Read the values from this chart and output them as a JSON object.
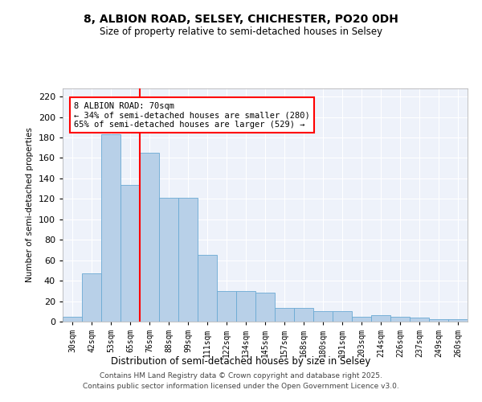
{
  "title1": "8, ALBION ROAD, SELSEY, CHICHESTER, PO20 0DH",
  "title2": "Size of property relative to semi-detached houses in Selsey",
  "xlabel": "Distribution of semi-detached houses by size in Selsey",
  "ylabel": "Number of semi-detached properties",
  "categories": [
    "30sqm",
    "42sqm",
    "53sqm",
    "65sqm",
    "76sqm",
    "88sqm",
    "99sqm",
    "111sqm",
    "122sqm",
    "134sqm",
    "145sqm",
    "157sqm",
    "168sqm",
    "180sqm",
    "191sqm",
    "203sqm",
    "214sqm",
    "226sqm",
    "237sqm",
    "249sqm",
    "260sqm"
  ],
  "values": [
    5,
    47,
    183,
    134,
    165,
    121,
    121,
    65,
    30,
    30,
    28,
    13,
    13,
    10,
    10,
    5,
    6,
    5,
    4,
    2,
    2
  ],
  "bar_color": "#b8d0e8",
  "bar_edge_color": "#6aaad4",
  "background_color": "#eef2fa",
  "grid_color": "#ffffff",
  "vline_x": 3.5,
  "vline_color": "red",
  "annotation_title": "8 ALBION ROAD: 70sqm",
  "annotation_line1": "← 34% of semi-detached houses are smaller (280)",
  "annotation_line2": "65% of semi-detached houses are larger (529) →",
  "annotation_box_color": "red",
  "footer1": "Contains HM Land Registry data © Crown copyright and database right 2025.",
  "footer2": "Contains public sector information licensed under the Open Government Licence v3.0.",
  "ylim": [
    0,
    228
  ],
  "yticks": [
    0,
    20,
    40,
    60,
    80,
    100,
    120,
    140,
    160,
    180,
    200,
    220
  ]
}
